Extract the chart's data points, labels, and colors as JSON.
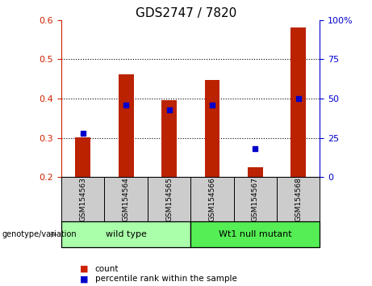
{
  "title": "GDS2747 / 7820",
  "samples": [
    "GSM154563",
    "GSM154564",
    "GSM154565",
    "GSM154566",
    "GSM154567",
    "GSM154568"
  ],
  "bar_bottoms": [
    0.2,
    0.2,
    0.2,
    0.2,
    0.2,
    0.2
  ],
  "bar_tops": [
    0.302,
    0.462,
    0.397,
    0.448,
    0.225,
    0.582
  ],
  "bar_color": "#bb2200",
  "blue_y_percentile": [
    28,
    46,
    43,
    46,
    18,
    50
  ],
  "blue_color": "#0000cc",
  "left_ylim": [
    0.2,
    0.6
  ],
  "left_yticks": [
    0.2,
    0.3,
    0.4,
    0.5,
    0.6
  ],
  "right_yticks": [
    0,
    25,
    50,
    75,
    100
  ],
  "right_ylim": [
    0,
    100
  ],
  "right_yticklabels": [
    "0",
    "25",
    "50",
    "75",
    "100%"
  ],
  "left_tick_color": "#cc2200",
  "right_tick_color": "#0000cc",
  "groups": [
    {
      "label": "wild type",
      "start": 0,
      "end": 3,
      "color": "#aaffaa"
    },
    {
      "label": "Wt1 null mutant",
      "start": 3,
      "end": 6,
      "color": "#55ee55"
    }
  ],
  "genotype_label": "genotype/variation",
  "legend_items": [
    {
      "label": "count",
      "color": "#cc2200"
    },
    {
      "label": "percentile rank within the sample",
      "color": "#0000cc"
    }
  ],
  "bar_width": 0.35,
  "sample_box_color": "#cccccc",
  "dotted_yticks": [
    0.3,
    0.4,
    0.5
  ],
  "background_color": "#ffffff",
  "title_fontsize": 11,
  "tick_fontsize": 8,
  "sample_fontsize": 6.5,
  "group_fontsize": 8,
  "legend_fontsize": 7.5
}
